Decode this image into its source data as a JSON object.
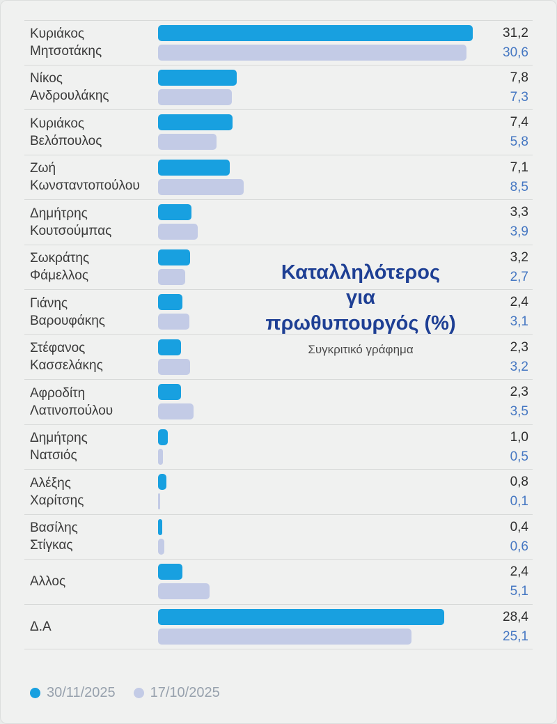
{
  "title": {
    "line1": "Καταλληλότερος",
    "line2": "για",
    "line3": "πρωθυπουργός (%)",
    "subtitle": "Συγκριτικό γράφημα"
  },
  "legend": [
    {
      "label": "30/11/2025",
      "color": "#18a0e0"
    },
    {
      "label": "17/10/2025",
      "color": "#c3cbe6"
    }
  ],
  "colors": {
    "background": "#f0f1f0",
    "bar_current": "#18a0e0",
    "bar_previous": "#c3cbe6",
    "value_current_text": "#2e2e2e",
    "value_previous_text": "#4577c2",
    "title_text": "#1e3f94",
    "separator": "#d7d9d8"
  },
  "chart_data": {
    "type": "bar",
    "orientation": "horizontal",
    "title": "Καταλληλότερος για πρωθυπουργός (%)",
    "subtitle": "Συγκριτικό γράφημα",
    "xlim": [
      0,
      32
    ],
    "grid": false,
    "legend_position": "bottom-left",
    "categories": [
      "Κυριάκος Μητσοτάκης",
      "Νίκος Ανδρουλάκης",
      "Κυριάκος Βελόπουλος",
      "Ζωή Κωνσταντοπούλου",
      "Δημήτρης Κουτσούμπας",
      "Σωκράτης Φάμελλος",
      "Γιάνης Βαρουφάκης",
      "Στέφανος Κασσελάκης",
      "Αφροδίτη Λατινοπούλου",
      "Δημήτρης Νατσιός",
      "Αλέξης Χαρίτσης",
      "Βασίλης Στίγκας",
      "Αλλος",
      "Δ.Α"
    ],
    "categories_display": [
      "Κυριάκος\nΜητσοτάκης",
      "Νίκος\nΑνδρουλάκης",
      "Κυριάκος\nΒελόπουλος",
      "Ζωή\nΚωνσταντοπούλου",
      "Δημήτρης\nΚουτσούμπας",
      "Σωκράτης\nΦάμελλος",
      "Γιάνης\nΒαρουφάκης",
      "Στέφανος\nΚασσελάκης",
      "Αφροδίτη\nΛατινοπούλου",
      "Δημήτρης\nΝατσιός",
      "Αλέξης\nΧαρίτσης",
      "Βασίλης\nΣτίγκας",
      "Αλλος",
      "Δ.Α"
    ],
    "series": [
      {
        "name": "30/11/2025",
        "color": "#18a0e0",
        "values": [
          31.2,
          7.8,
          7.4,
          7.1,
          3.3,
          3.2,
          2.4,
          2.3,
          2.3,
          1.0,
          0.8,
          0.4,
          2.4,
          28.4
        ]
      },
      {
        "name": "17/10/2025",
        "color": "#c3cbe6",
        "values": [
          30.6,
          7.3,
          5.8,
          8.5,
          3.9,
          2.7,
          3.1,
          3.2,
          3.5,
          0.5,
          0.1,
          0.6,
          5.1,
          25.1
        ]
      }
    ]
  }
}
